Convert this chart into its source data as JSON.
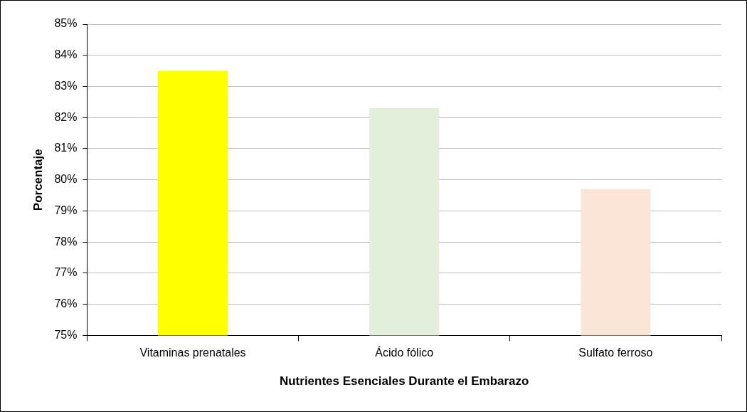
{
  "chart_data": {
    "type": "bar",
    "xlabel": "Nutrientes Esenciales Durante el Embarazo",
    "ylabel": "Porcentaje",
    "categories": [
      "Vitaminas prenatales",
      "Ácido fólico",
      "Sulfato ferroso"
    ],
    "values": [
      83.5,
      82.3,
      79.7
    ],
    "colors": [
      "#ffff00",
      "#e2efda",
      "#fbe5d6"
    ],
    "ylim": [
      75,
      85
    ],
    "yticks": [
      {
        "value": 75,
        "label": "75%"
      },
      {
        "value": 76,
        "label": "76%"
      },
      {
        "value": 77,
        "label": "77%"
      },
      {
        "value": 78,
        "label": "78%"
      },
      {
        "value": 79,
        "label": "79%"
      },
      {
        "value": 80,
        "label": "80%"
      },
      {
        "value": 81,
        "label": "81%"
      },
      {
        "value": 82,
        "label": "82%"
      },
      {
        "value": 83,
        "label": "83%"
      },
      {
        "value": 84,
        "label": "84%"
      },
      {
        "value": 85,
        "label": "85%"
      }
    ],
    "grid": "y",
    "legend": false
  }
}
